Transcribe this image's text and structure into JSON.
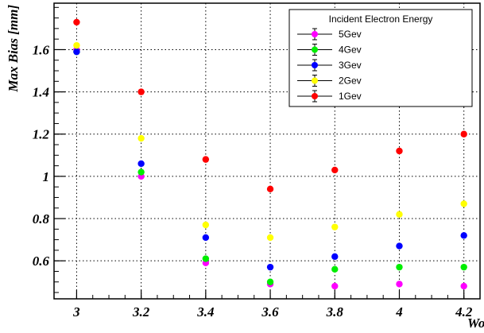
{
  "chart_data": {
    "type": "scatter",
    "xlabel": "Wo",
    "ylabel": "Max Bias [mm]",
    "xlim": [
      2.93,
      4.25
    ],
    "ylim": [
      0.42,
      1.82
    ],
    "x_ticks": [
      "3",
      "3.2",
      "3.4",
      "3.6",
      "3.8",
      "4",
      "4.2"
    ],
    "y_ticks": [
      "0.6",
      "0.8",
      "1",
      "1.2",
      "1.4",
      "1.6"
    ],
    "grid": true,
    "legend": {
      "title": "Incident Electron Energy",
      "position": "top-right"
    },
    "series": [
      {
        "name": "5Gev",
        "color": "#ff00ff",
        "x": [
          3,
          3.2,
          3.4,
          3.6,
          3.8,
          4,
          4.2
        ],
        "y": [
          1.6,
          1.0,
          0.59,
          0.49,
          0.48,
          0.49,
          0.48
        ]
      },
      {
        "name": "4Gev",
        "color": "#00ee00",
        "x": [
          3,
          3.2,
          3.4,
          3.6,
          3.8,
          4,
          4.2
        ],
        "y": [
          1.59,
          1.02,
          0.61,
          0.5,
          0.56,
          0.57,
          0.57
        ]
      },
      {
        "name": "3Gev",
        "color": "#0000ff",
        "x": [
          3,
          3.2,
          3.4,
          3.6,
          3.8,
          4,
          4.2
        ],
        "y": [
          1.59,
          1.06,
          0.71,
          0.57,
          0.62,
          0.67,
          0.72
        ]
      },
      {
        "name": "2Gev",
        "color": "#ffff00",
        "x": [
          3,
          3.2,
          3.4,
          3.6,
          3.8,
          4,
          4.2
        ],
        "y": [
          1.62,
          1.18,
          0.77,
          0.71,
          0.76,
          0.82,
          0.87
        ]
      },
      {
        "name": "1Gev",
        "color": "#ff0000",
        "x": [
          3,
          3.2,
          3.4,
          3.6,
          3.8,
          4,
          4.2
        ],
        "y": [
          1.73,
          1.4,
          1.08,
          0.94,
          1.03,
          1.12,
          1.2
        ]
      }
    ]
  }
}
